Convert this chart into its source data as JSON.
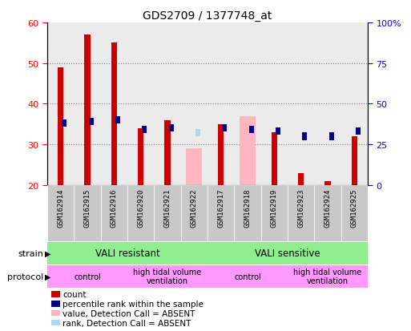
{
  "title": "GDS2709 / 1377748_at",
  "samples": [
    "GSM162914",
    "GSM162915",
    "GSM162916",
    "GSM162920",
    "GSM162921",
    "GSM162922",
    "GSM162917",
    "GSM162918",
    "GSM162919",
    "GSM162923",
    "GSM162924",
    "GSM162925"
  ],
  "count_values": [
    49,
    57,
    55,
    34,
    36,
    null,
    35,
    null,
    33,
    23,
    21,
    32
  ],
  "count_absent": [
    null,
    null,
    null,
    null,
    null,
    29,
    null,
    37,
    null,
    null,
    null,
    null
  ],
  "rank_values": [
    38,
    39,
    40,
    34,
    35,
    null,
    35,
    34,
    33,
    null,
    null,
    33
  ],
  "rank_absent": [
    null,
    null,
    null,
    null,
    null,
    32,
    null,
    34,
    null,
    null,
    null,
    null
  ],
  "rank_dots": [
    null,
    null,
    null,
    null,
    null,
    null,
    null,
    null,
    null,
    30,
    30,
    null
  ],
  "ylim_left": [
    20,
    60
  ],
  "ylim_right": [
    0,
    100
  ],
  "yticks_left": [
    20,
    30,
    40,
    50,
    60
  ],
  "yticks_right": [
    0,
    25,
    50,
    75,
    100
  ],
  "ytick_labels_right": [
    "0",
    "25",
    "50",
    "75",
    "100%"
  ],
  "count_color": "#CC0000",
  "rank_color": "#00008B",
  "count_absent_color": "#FFB6C1",
  "rank_absent_color": "#ADD8E6",
  "strain_green": "#90EE90",
  "protocol_pink": "#FF99FF",
  "sample_gray": "#C8C8C8",
  "legend_items": [
    {
      "label": "count",
      "color": "#CC0000"
    },
    {
      "label": "percentile rank within the sample",
      "color": "#00008B"
    },
    {
      "label": "value, Detection Call = ABSENT",
      "color": "#FFB6C1"
    },
    {
      "label": "rank, Detection Call = ABSENT",
      "color": "#ADD8E6"
    }
  ]
}
